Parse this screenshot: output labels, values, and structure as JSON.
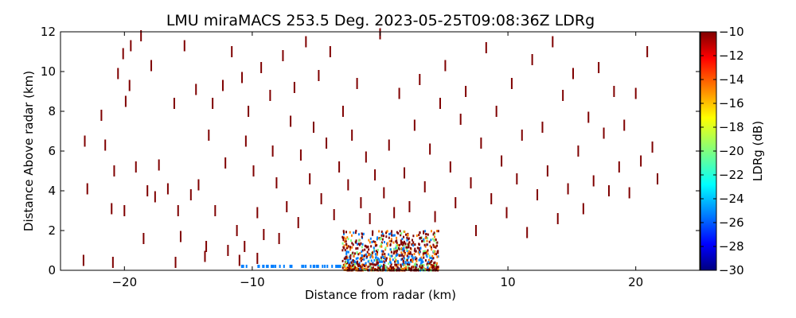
{
  "chart_data": {
    "type": "heatmap",
    "title": "LMU miraMACS 253.5 Deg. 2023-05-25T09:08:36Z  LDRg",
    "xlabel": "Distance from radar (km)",
    "ylabel": "Distance Above radar  (km)",
    "xlim": [
      -25,
      25
    ],
    "ylim": [
      0,
      12
    ],
    "x_ticks": [
      -20,
      -10,
      0,
      10,
      20
    ],
    "x_tick_labels": [
      "−20",
      "−10",
      "0",
      "10",
      "20"
    ],
    "y_ticks": [
      0,
      2,
      4,
      6,
      8,
      10,
      12
    ],
    "y_tick_labels": [
      "0",
      "2",
      "4",
      "6",
      "8",
      "10",
      "12"
    ],
    "colorbar": {
      "label": "LDRg (dB)",
      "range": [
        -30,
        -10
      ],
      "ticks": [
        -10,
        -12,
        -14,
        -16,
        -18,
        -20,
        -22,
        -24,
        -26,
        -28,
        -30
      ],
      "tick_labels": [
        "−10",
        "−12",
        "−14",
        "−16",
        "−18",
        "−20",
        "−22",
        "−24",
        "−26",
        "−28",
        "−30"
      ],
      "colormap": "jet",
      "colors": [
        "#00007f",
        "#0000ff",
        "#007fff",
        "#00ffff",
        "#7fff7f",
        "#ffff00",
        "#ff7f00",
        "#ff0000",
        "#7f0000"
      ]
    },
    "grid": false,
    "echo_region": {
      "description_values": "dense echo near radar",
      "x_range": [
        -3,
        4.5
      ],
      "y_range": [
        0,
        2
      ],
      "dominant_ldr_db": -12
    },
    "scattered_returns": [
      {
        "x": -23.1,
        "y": 6.5,
        "v": -10
      },
      {
        "x": -22.9,
        "y": 4.1,
        "v": -10
      },
      {
        "x": -21.8,
        "y": 7.8,
        "v": -10
      },
      {
        "x": -21.5,
        "y": 6.3,
        "v": -10
      },
      {
        "x": -21.0,
        "y": 3.1,
        "v": -10
      },
      {
        "x": -20.8,
        "y": 5.0,
        "v": -10
      },
      {
        "x": -20.5,
        "y": 9.9,
        "v": -10
      },
      {
        "x": -20.1,
        "y": 10.9,
        "v": -10
      },
      {
        "x": -20.0,
        "y": 3.0,
        "v": -10
      },
      {
        "x": -19.9,
        "y": 8.5,
        "v": -10
      },
      {
        "x": -19.6,
        "y": 9.3,
        "v": -10
      },
      {
        "x": -19.5,
        "y": 11.3,
        "v": -10
      },
      {
        "x": -19.1,
        "y": 5.2,
        "v": -10
      },
      {
        "x": -18.7,
        "y": 11.8,
        "v": -10
      },
      {
        "x": -18.5,
        "y": 1.6,
        "v": -10
      },
      {
        "x": -18.2,
        "y": 4.0,
        "v": -10
      },
      {
        "x": -17.9,
        "y": 10.3,
        "v": -10
      },
      {
        "x": -17.6,
        "y": 3.7,
        "v": -10
      },
      {
        "x": -17.3,
        "y": 5.3,
        "v": -10
      },
      {
        "x": -16.6,
        "y": 4.1,
        "v": -10
      },
      {
        "x": -16.1,
        "y": 8.4,
        "v": -10
      },
      {
        "x": -15.8,
        "y": 3.0,
        "v": -10
      },
      {
        "x": -15.6,
        "y": 1.7,
        "v": -10
      },
      {
        "x": -15.3,
        "y": 11.3,
        "v": -10
      },
      {
        "x": -14.8,
        "y": 3.8,
        "v": -10
      },
      {
        "x": -14.4,
        "y": 9.1,
        "v": -10
      },
      {
        "x": -14.2,
        "y": 4.3,
        "v": -10
      },
      {
        "x": -13.6,
        "y": 1.2,
        "v": -10
      },
      {
        "x": -13.4,
        "y": 6.8,
        "v": -10
      },
      {
        "x": -13.1,
        "y": 8.4,
        "v": -10
      },
      {
        "x": -12.9,
        "y": 3.0,
        "v": -10
      },
      {
        "x": -12.3,
        "y": 9.3,
        "v": -10
      },
      {
        "x": -12.1,
        "y": 5.4,
        "v": -10
      },
      {
        "x": -11.9,
        "y": 1.0,
        "v": -10
      },
      {
        "x": -11.6,
        "y": 11.0,
        "v": -10
      },
      {
        "x": -11.2,
        "y": 2.0,
        "v": -10
      },
      {
        "x": -10.8,
        "y": 9.7,
        "v": -10
      },
      {
        "x": -10.5,
        "y": 6.5,
        "v": -10
      },
      {
        "x": -10.3,
        "y": 8.0,
        "v": -10
      },
      {
        "x": -9.9,
        "y": 5.0,
        "v": -10
      },
      {
        "x": -9.6,
        "y": 2.9,
        "v": -10
      },
      {
        "x": -9.3,
        "y": 10.2,
        "v": -10
      },
      {
        "x": -9.1,
        "y": 1.8,
        "v": -10
      },
      {
        "x": -8.6,
        "y": 8.8,
        "v": -10
      },
      {
        "x": -8.4,
        "y": 6.0,
        "v": -10
      },
      {
        "x": -8.1,
        "y": 4.4,
        "v": -10
      },
      {
        "x": -7.9,
        "y": 1.6,
        "v": -10
      },
      {
        "x": -7.6,
        "y": 10.8,
        "v": -10
      },
      {
        "x": -7.3,
        "y": 3.2,
        "v": -10
      },
      {
        "x": -7.0,
        "y": 7.5,
        "v": -10
      },
      {
        "x": -6.7,
        "y": 9.2,
        "v": -10
      },
      {
        "x": -6.4,
        "y": 2.4,
        "v": -10
      },
      {
        "x": -6.2,
        "y": 5.8,
        "v": -10
      },
      {
        "x": -5.8,
        "y": 11.5,
        "v": -10
      },
      {
        "x": -5.5,
        "y": 4.6,
        "v": -10
      },
      {
        "x": -5.2,
        "y": 7.2,
        "v": -10
      },
      {
        "x": -4.8,
        "y": 9.8,
        "v": -10
      },
      {
        "x": -4.6,
        "y": 3.6,
        "v": -10
      },
      {
        "x": -4.2,
        "y": 6.4,
        "v": -10
      },
      {
        "x": -3.9,
        "y": 11.0,
        "v": -10
      },
      {
        "x": -3.6,
        "y": 2.8,
        "v": -10
      },
      {
        "x": -3.2,
        "y": 5.2,
        "v": -10
      },
      {
        "x": -2.9,
        "y": 8.0,
        "v": -10
      },
      {
        "x": -2.5,
        "y": 4.3,
        "v": -10
      },
      {
        "x": -2.2,
        "y": 6.8,
        "v": -10
      },
      {
        "x": -1.8,
        "y": 9.4,
        "v": -10
      },
      {
        "x": -1.5,
        "y": 3.4,
        "v": -10
      },
      {
        "x": -1.1,
        "y": 5.7,
        "v": -10
      },
      {
        "x": -0.8,
        "y": 2.6,
        "v": -10
      },
      {
        "x": -0.4,
        "y": 4.8,
        "v": -10
      },
      {
        "x": 0.0,
        "y": 11.9,
        "v": -10
      },
      {
        "x": 0.3,
        "y": 3.9,
        "v": -10
      },
      {
        "x": 0.7,
        "y": 6.3,
        "v": -10
      },
      {
        "x": 1.1,
        "y": 2.9,
        "v": -10
      },
      {
        "x": 1.5,
        "y": 8.9,
        "v": -10
      },
      {
        "x": 1.9,
        "y": 4.9,
        "v": -10
      },
      {
        "x": 2.3,
        "y": 3.2,
        "v": -10
      },
      {
        "x": 2.7,
        "y": 7.3,
        "v": -10
      },
      {
        "x": 3.1,
        "y": 9.6,
        "v": -10
      },
      {
        "x": 3.5,
        "y": 4.2,
        "v": -10
      },
      {
        "x": 3.9,
        "y": 6.1,
        "v": -10
      },
      {
        "x": 4.3,
        "y": 2.7,
        "v": -10
      },
      {
        "x": 4.7,
        "y": 8.4,
        "v": -10
      },
      {
        "x": 5.1,
        "y": 10.3,
        "v": -10
      },
      {
        "x": 5.5,
        "y": 5.2,
        "v": -10
      },
      {
        "x": 5.9,
        "y": 3.4,
        "v": -10
      },
      {
        "x": 6.3,
        "y": 7.6,
        "v": -10
      },
      {
        "x": 6.7,
        "y": 9.0,
        "v": -10
      },
      {
        "x": 7.1,
        "y": 4.4,
        "v": -10
      },
      {
        "x": 7.5,
        "y": 2.0,
        "v": -10
      },
      {
        "x": 7.9,
        "y": 6.4,
        "v": -10
      },
      {
        "x": 8.3,
        "y": 11.2,
        "v": -10
      },
      {
        "x": 8.7,
        "y": 3.6,
        "v": -10
      },
      {
        "x": 9.1,
        "y": 8.0,
        "v": -10
      },
      {
        "x": 9.5,
        "y": 5.5,
        "v": -10
      },
      {
        "x": 9.9,
        "y": 2.9,
        "v": -10
      },
      {
        "x": 10.3,
        "y": 9.4,
        "v": -10
      },
      {
        "x": 10.7,
        "y": 4.6,
        "v": -10
      },
      {
        "x": 11.1,
        "y": 6.8,
        "v": -10
      },
      {
        "x": 11.5,
        "y": 1.9,
        "v": -10
      },
      {
        "x": 11.9,
        "y": 10.6,
        "v": -10
      },
      {
        "x": 12.3,
        "y": 3.8,
        "v": -10
      },
      {
        "x": 12.7,
        "y": 7.2,
        "v": -10
      },
      {
        "x": 13.1,
        "y": 5.0,
        "v": -10
      },
      {
        "x": 13.5,
        "y": 11.5,
        "v": -10
      },
      {
        "x": 13.9,
        "y": 2.6,
        "v": -10
      },
      {
        "x": 14.3,
        "y": 8.8,
        "v": -10
      },
      {
        "x": 14.7,
        "y": 4.1,
        "v": -10
      },
      {
        "x": 15.1,
        "y": 9.9,
        "v": -10
      },
      {
        "x": 15.5,
        "y": 6.0,
        "v": -10
      },
      {
        "x": 15.9,
        "y": 3.1,
        "v": -10
      },
      {
        "x": 16.3,
        "y": 7.7,
        "v": -10
      },
      {
        "x": 16.7,
        "y": 4.5,
        "v": -10
      },
      {
        "x": 17.1,
        "y": 10.2,
        "v": -10
      },
      {
        "x": 17.5,
        "y": 6.9,
        "v": -10
      },
      {
        "x": 17.9,
        "y": 4.0,
        "v": -10
      },
      {
        "x": 18.3,
        "y": 9.0,
        "v": -10
      },
      {
        "x": 18.7,
        "y": 5.2,
        "v": -10
      },
      {
        "x": 19.1,
        "y": 7.3,
        "v": -10
      },
      {
        "x": 19.5,
        "y": 3.9,
        "v": -10
      },
      {
        "x": 20.0,
        "y": 8.9,
        "v": -10
      },
      {
        "x": 20.4,
        "y": 5.5,
        "v": -10
      },
      {
        "x": 20.9,
        "y": 11.0,
        "v": -10
      },
      {
        "x": 21.3,
        "y": 6.2,
        "v": -10
      },
      {
        "x": 21.7,
        "y": 4.6,
        "v": -10
      },
      {
        "x": -23.2,
        "y": 0.5,
        "v": -10
      },
      {
        "x": -20.9,
        "y": 0.4,
        "v": -10
      },
      {
        "x": -16.0,
        "y": 0.4,
        "v": -10
      },
      {
        "x": -13.7,
        "y": 0.7,
        "v": -10
      },
      {
        "x": -11.0,
        "y": 0.5,
        "v": -10
      },
      {
        "x": -10.6,
        "y": 1.2,
        "v": -10
      },
      {
        "x": -9.6,
        "y": 0.6,
        "v": -10
      }
    ]
  }
}
